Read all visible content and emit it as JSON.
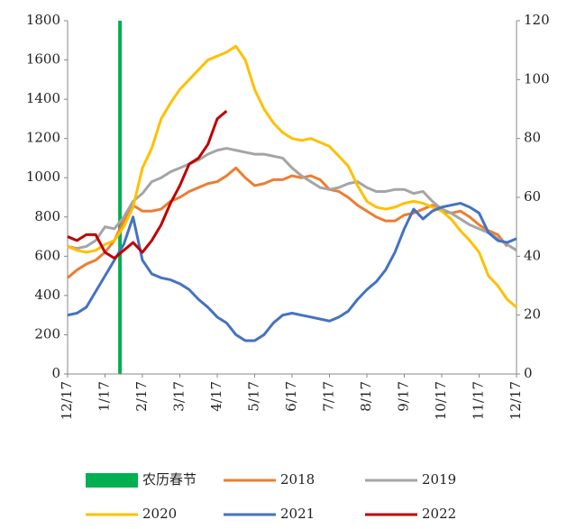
{
  "chart_data": {
    "type": "line",
    "x": [
      0,
      0.25,
      0.5,
      0.75,
      1,
      1.25,
      1.5,
      1.75,
      2,
      2.25,
      2.5,
      2.75,
      3,
      3.25,
      3.5,
      3.75,
      4,
      4.25,
      4.5,
      4.75,
      5,
      5.25,
      5.5,
      5.75,
      6,
      6.25,
      6.5,
      6.75,
      7,
      7.25,
      7.5,
      7.75,
      8,
      8.25,
      8.5,
      8.75,
      9,
      9.25,
      9.5,
      9.75,
      10,
      10.25,
      10.5,
      10.75,
      11,
      11.25,
      11.5,
      11.75,
      12
    ],
    "xlim": [
      0,
      12
    ],
    "xticks": [
      {
        "value": 0,
        "label": "12/17"
      },
      {
        "value": 1,
        "label": "1/17"
      },
      {
        "value": 2,
        "label": "2/17"
      },
      {
        "value": 3,
        "label": "3/17"
      },
      {
        "value": 4,
        "label": "4/17"
      },
      {
        "value": 5,
        "label": "5/17"
      },
      {
        "value": 6,
        "label": "6/17"
      },
      {
        "value": 7,
        "label": "7/17"
      },
      {
        "value": 8,
        "label": "8/17"
      },
      {
        "value": 9,
        "label": "9/17"
      },
      {
        "value": 10,
        "label": "10/17"
      },
      {
        "value": 11,
        "label": "11/17"
      },
      {
        "value": 12,
        "label": "12/17"
      }
    ],
    "ylim": [
      0,
      1800
    ],
    "yticks": [
      0,
      200,
      400,
      600,
      800,
      1000,
      1200,
      1400,
      1600,
      1800
    ],
    "y2lim": [
      0,
      120
    ],
    "y2ticks": [
      0,
      20,
      40,
      60,
      80,
      100,
      120
    ],
    "marker": {
      "name": "农历春节",
      "color": "#00b050",
      "x": 1.4,
      "value": 1800
    },
    "series": [
      {
        "name": "2018",
        "color": "#ed7d31",
        "values": [
          490,
          530,
          560,
          580,
          620,
          680,
          780,
          860,
          830,
          830,
          840,
          880,
          900,
          930,
          950,
          970,
          980,
          1010,
          1050,
          1000,
          960,
          970,
          990,
          990,
          1010,
          1000,
          1010,
          990,
          940,
          930,
          900,
          860,
          830,
          800,
          780,
          780,
          810,
          820,
          840,
          860,
          830,
          820,
          830,
          800,
          760,
          730,
          710,
          650,
          null
        ]
      },
      {
        "name": "2019",
        "color": "#a5a5a5",
        "values": [
          650,
          640,
          650,
          680,
          750,
          740,
          800,
          880,
          920,
          980,
          1000,
          1030,
          1050,
          1070,
          1090,
          1120,
          1140,
          1150,
          1140,
          1130,
          1120,
          1120,
          1110,
          1100,
          1050,
          1010,
          980,
          950,
          940,
          950,
          970,
          980,
          950,
          930,
          930,
          940,
          940,
          920,
          930,
          880,
          840,
          820,
          790,
          760,
          740,
          720,
          690,
          660,
          630
        ]
      },
      {
        "name": "2020",
        "color": "#ffc000",
        "values": [
          650,
          630,
          620,
          630,
          660,
          680,
          750,
          850,
          1050,
          1150,
          1300,
          1380,
          1450,
          1500,
          1550,
          1600,
          1620,
          1640,
          1670,
          1600,
          1450,
          1350,
          1280,
          1230,
          1200,
          1190,
          1200,
          1180,
          1160,
          1110,
          1060,
          960,
          880,
          850,
          840,
          850,
          870,
          880,
          870,
          850,
          830,
          790,
          730,
          680,
          620,
          500,
          450,
          380,
          340
        ]
      },
      {
        "name": "2021",
        "color": "#4472c4",
        "values": [
          300,
          310,
          340,
          420,
          500,
          580,
          660,
          800,
          580,
          510,
          490,
          480,
          460,
          430,
          380,
          340,
          290,
          260,
          200,
          170,
          170,
          200,
          260,
          300,
          310,
          300,
          290,
          280,
          270,
          290,
          320,
          380,
          430,
          470,
          530,
          620,
          740,
          840,
          790,
          830,
          850,
          860,
          870,
          850,
          820,
          720,
          680,
          670,
          690
        ]
      },
      {
        "name": "2022",
        "color": "#c00000",
        "values": [
          700,
          680,
          710,
          710,
          620,
          590,
          630,
          670,
          620,
          680,
          760,
          870,
          960,
          1070,
          1100,
          1170,
          1300,
          1340,
          null,
          null,
          null,
          null,
          null,
          null,
          null,
          null,
          null,
          null,
          null,
          null,
          null,
          null,
          null,
          null,
          null,
          null,
          null,
          null,
          null,
          null,
          null,
          null,
          null,
          null,
          null,
          null,
          null,
          null,
          null
        ]
      }
    ]
  }
}
